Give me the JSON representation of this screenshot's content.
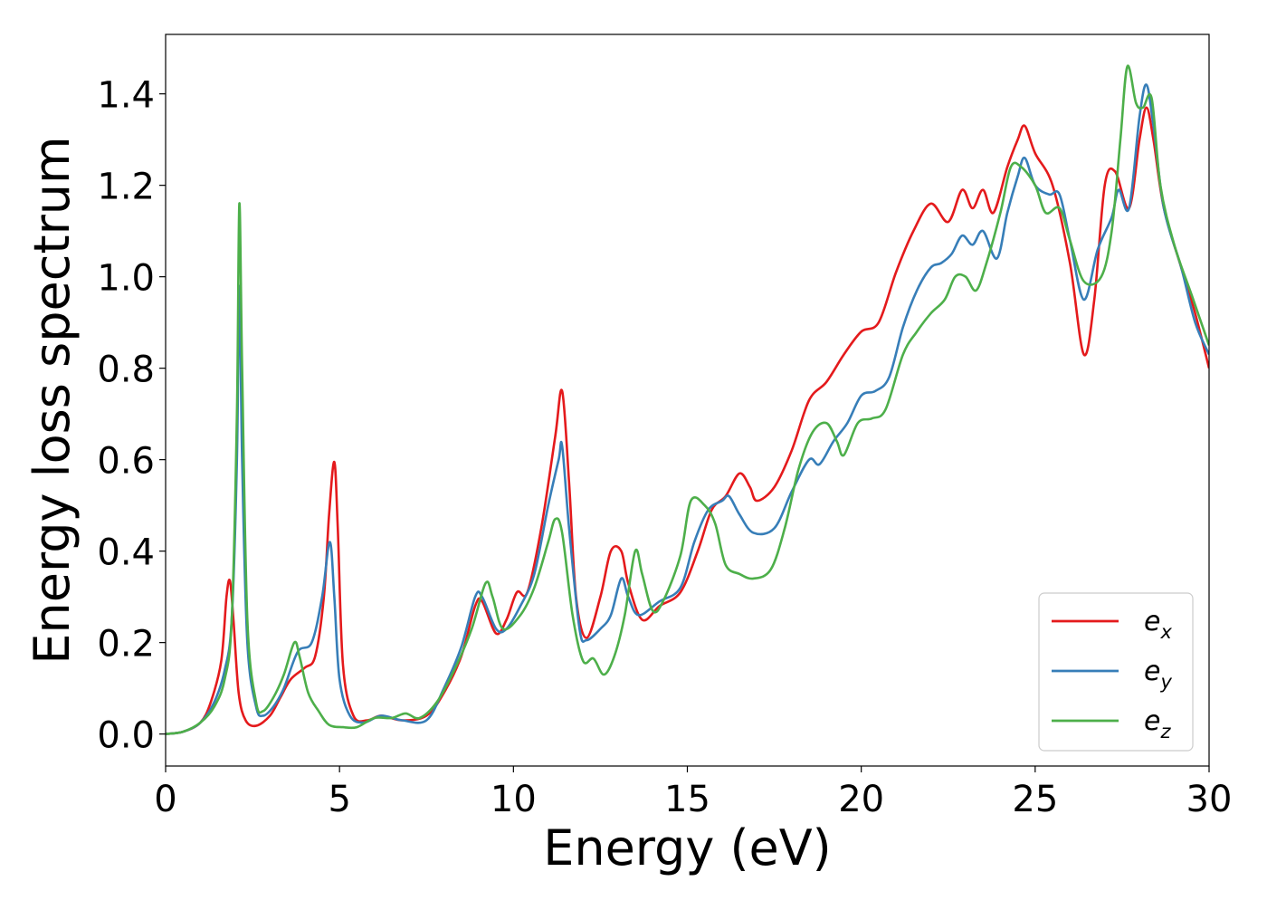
{
  "chart_data": {
    "type": "line",
    "title": "",
    "xlabel": "Energy (eV)",
    "ylabel": "Energy loss spectrum",
    "xlim": [
      0,
      30
    ],
    "ylim": [
      -0.07,
      1.53
    ],
    "xticks": [
      0,
      5,
      10,
      15,
      20,
      25,
      30
    ],
    "xtick_labels": [
      "0",
      "5",
      "10",
      "15",
      "20",
      "25",
      "30"
    ],
    "yticks": [
      0.0,
      0.2,
      0.4,
      0.6,
      0.8,
      1.0,
      1.2,
      1.4
    ],
    "ytick_labels": [
      "0.0",
      "0.2",
      "0.4",
      "0.6",
      "0.8",
      "1.0",
      "1.2",
      "1.4"
    ],
    "grid": false,
    "legend_position": "lower-right",
    "series": [
      {
        "name": "e_x",
        "legend_base": "e",
        "legend_sub": "x",
        "color": "#e41a1c",
        "points": [
          [
            0,
            0
          ],
          [
            0.5,
            0.005
          ],
          [
            1.0,
            0.025
          ],
          [
            1.3,
            0.07
          ],
          [
            1.6,
            0.16
          ],
          [
            1.75,
            0.3
          ],
          [
            1.85,
            0.335
          ],
          [
            1.95,
            0.25
          ],
          [
            2.1,
            0.09
          ],
          [
            2.3,
            0.03
          ],
          [
            2.6,
            0.018
          ],
          [
            3.0,
            0.04
          ],
          [
            3.3,
            0.08
          ],
          [
            3.6,
            0.12
          ],
          [
            4.0,
            0.145
          ],
          [
            4.3,
            0.17
          ],
          [
            4.55,
            0.3
          ],
          [
            4.7,
            0.48
          ],
          [
            4.85,
            0.595
          ],
          [
            4.95,
            0.45
          ],
          [
            5.1,
            0.15
          ],
          [
            5.4,
            0.04
          ],
          [
            5.8,
            0.03
          ],
          [
            6.2,
            0.04
          ],
          [
            6.8,
            0.03
          ],
          [
            7.5,
            0.04
          ],
          [
            8.0,
            0.09
          ],
          [
            8.5,
            0.17
          ],
          [
            8.9,
            0.28
          ],
          [
            9.1,
            0.29
          ],
          [
            9.5,
            0.22
          ],
          [
            9.8,
            0.25
          ],
          [
            10.1,
            0.31
          ],
          [
            10.4,
            0.31
          ],
          [
            10.8,
            0.45
          ],
          [
            11.2,
            0.65
          ],
          [
            11.4,
            0.75
          ],
          [
            11.6,
            0.55
          ],
          [
            11.8,
            0.3
          ],
          [
            12.1,
            0.21
          ],
          [
            12.5,
            0.3
          ],
          [
            12.8,
            0.4
          ],
          [
            13.1,
            0.4
          ],
          [
            13.3,
            0.33
          ],
          [
            13.7,
            0.25
          ],
          [
            14.2,
            0.28
          ],
          [
            14.8,
            0.31
          ],
          [
            15.3,
            0.4
          ],
          [
            15.7,
            0.49
          ],
          [
            16.1,
            0.52
          ],
          [
            16.5,
            0.57
          ],
          [
            16.8,
            0.54
          ],
          [
            17.0,
            0.51
          ],
          [
            17.5,
            0.54
          ],
          [
            18.0,
            0.62
          ],
          [
            18.5,
            0.73
          ],
          [
            19.0,
            0.77
          ],
          [
            19.5,
            0.83
          ],
          [
            20.0,
            0.88
          ],
          [
            20.5,
            0.9
          ],
          [
            21.0,
            1.01
          ],
          [
            21.5,
            1.1
          ],
          [
            22.0,
            1.16
          ],
          [
            22.5,
            1.12
          ],
          [
            22.9,
            1.19
          ],
          [
            23.2,
            1.15
          ],
          [
            23.5,
            1.19
          ],
          [
            23.8,
            1.14
          ],
          [
            24.2,
            1.24
          ],
          [
            24.5,
            1.3
          ],
          [
            24.7,
            1.33
          ],
          [
            25.0,
            1.27
          ],
          [
            25.5,
            1.2
          ],
          [
            26.0,
            1.03
          ],
          [
            26.4,
            0.83
          ],
          [
            26.7,
            0.95
          ],
          [
            27.0,
            1.2
          ],
          [
            27.3,
            1.23
          ],
          [
            27.7,
            1.15
          ],
          [
            28.0,
            1.3
          ],
          [
            28.2,
            1.37
          ],
          [
            28.4,
            1.3
          ],
          [
            28.7,
            1.15
          ],
          [
            29.2,
            1.02
          ],
          [
            29.6,
            0.92
          ],
          [
            30.0,
            0.8
          ]
        ]
      },
      {
        "name": "e_y",
        "legend_base": "e",
        "legend_sub": "y",
        "color": "#377eb8",
        "points": [
          [
            0,
            0
          ],
          [
            0.5,
            0.005
          ],
          [
            1.0,
            0.025
          ],
          [
            1.4,
            0.07
          ],
          [
            1.7,
            0.14
          ],
          [
            1.9,
            0.25
          ],
          [
            2.05,
            0.6
          ],
          [
            2.12,
            0.98
          ],
          [
            2.2,
            0.6
          ],
          [
            2.35,
            0.2
          ],
          [
            2.6,
            0.06
          ],
          [
            2.8,
            0.04
          ],
          [
            3.1,
            0.06
          ],
          [
            3.4,
            0.1
          ],
          [
            3.8,
            0.18
          ],
          [
            4.2,
            0.2
          ],
          [
            4.5,
            0.3
          ],
          [
            4.72,
            0.42
          ],
          [
            4.85,
            0.3
          ],
          [
            5.0,
            0.12
          ],
          [
            5.3,
            0.04
          ],
          [
            5.7,
            0.025
          ],
          [
            6.2,
            0.04
          ],
          [
            6.8,
            0.03
          ],
          [
            7.5,
            0.03
          ],
          [
            8.0,
            0.1
          ],
          [
            8.5,
            0.19
          ],
          [
            8.9,
            0.3
          ],
          [
            9.1,
            0.3
          ],
          [
            9.5,
            0.23
          ],
          [
            9.8,
            0.23
          ],
          [
            10.2,
            0.28
          ],
          [
            10.6,
            0.35
          ],
          [
            11.0,
            0.5
          ],
          [
            11.3,
            0.6
          ],
          [
            11.4,
            0.63
          ],
          [
            11.6,
            0.45
          ],
          [
            11.9,
            0.23
          ],
          [
            12.1,
            0.205
          ],
          [
            12.5,
            0.23
          ],
          [
            12.8,
            0.26
          ],
          [
            13.1,
            0.34
          ],
          [
            13.3,
            0.3
          ],
          [
            13.6,
            0.26
          ],
          [
            14.2,
            0.29
          ],
          [
            14.8,
            0.32
          ],
          [
            15.2,
            0.42
          ],
          [
            15.6,
            0.49
          ],
          [
            16.0,
            0.51
          ],
          [
            16.2,
            0.52
          ],
          [
            16.5,
            0.48
          ],
          [
            16.9,
            0.44
          ],
          [
            17.5,
            0.45
          ],
          [
            18.0,
            0.53
          ],
          [
            18.5,
            0.6
          ],
          [
            18.8,
            0.59
          ],
          [
            19.2,
            0.64
          ],
          [
            19.6,
            0.68
          ],
          [
            20.0,
            0.74
          ],
          [
            20.4,
            0.75
          ],
          [
            20.8,
            0.78
          ],
          [
            21.2,
            0.89
          ],
          [
            21.6,
            0.97
          ],
          [
            22.0,
            1.02
          ],
          [
            22.3,
            1.03
          ],
          [
            22.6,
            1.05
          ],
          [
            22.9,
            1.09
          ],
          [
            23.2,
            1.07
          ],
          [
            23.5,
            1.1
          ],
          [
            23.9,
            1.04
          ],
          [
            24.2,
            1.14
          ],
          [
            24.5,
            1.22
          ],
          [
            24.7,
            1.26
          ],
          [
            25.0,
            1.2
          ],
          [
            25.4,
            1.18
          ],
          [
            25.7,
            1.18
          ],
          [
            26.0,
            1.08
          ],
          [
            26.4,
            0.95
          ],
          [
            26.8,
            1.06
          ],
          [
            27.2,
            1.13
          ],
          [
            27.4,
            1.19
          ],
          [
            27.7,
            1.15
          ],
          [
            28.0,
            1.35
          ],
          [
            28.2,
            1.42
          ],
          [
            28.4,
            1.33
          ],
          [
            28.7,
            1.15
          ],
          [
            29.2,
            1.02
          ],
          [
            29.6,
            0.9
          ],
          [
            30.0,
            0.83
          ]
        ]
      },
      {
        "name": "e_z",
        "legend_base": "e",
        "legend_sub": "z",
        "color": "#4daf4a",
        "points": [
          [
            0,
            0
          ],
          [
            0.5,
            0.005
          ],
          [
            1.0,
            0.025
          ],
          [
            1.4,
            0.06
          ],
          [
            1.7,
            0.12
          ],
          [
            1.9,
            0.25
          ],
          [
            2.05,
            0.7
          ],
          [
            2.12,
            1.16
          ],
          [
            2.2,
            0.8
          ],
          [
            2.35,
            0.25
          ],
          [
            2.6,
            0.07
          ],
          [
            2.8,
            0.05
          ],
          [
            3.1,
            0.08
          ],
          [
            3.4,
            0.13
          ],
          [
            3.7,
            0.2
          ],
          [
            3.85,
            0.17
          ],
          [
            4.1,
            0.09
          ],
          [
            4.4,
            0.05
          ],
          [
            4.7,
            0.02
          ],
          [
            5.1,
            0.015
          ],
          [
            5.5,
            0.015
          ],
          [
            6.0,
            0.035
          ],
          [
            6.5,
            0.035
          ],
          [
            6.9,
            0.045
          ],
          [
            7.3,
            0.035
          ],
          [
            7.8,
            0.07
          ],
          [
            8.3,
            0.14
          ],
          [
            8.8,
            0.23
          ],
          [
            9.2,
            0.33
          ],
          [
            9.4,
            0.3
          ],
          [
            9.7,
            0.23
          ],
          [
            10.2,
            0.26
          ],
          [
            10.6,
            0.32
          ],
          [
            11.0,
            0.42
          ],
          [
            11.2,
            0.47
          ],
          [
            11.4,
            0.44
          ],
          [
            11.7,
            0.26
          ],
          [
            12.0,
            0.16
          ],
          [
            12.3,
            0.165
          ],
          [
            12.6,
            0.13
          ],
          [
            12.9,
            0.17
          ],
          [
            13.2,
            0.26
          ],
          [
            13.5,
            0.4
          ],
          [
            13.7,
            0.35
          ],
          [
            14.0,
            0.27
          ],
          [
            14.3,
            0.29
          ],
          [
            14.8,
            0.39
          ],
          [
            15.1,
            0.51
          ],
          [
            15.5,
            0.5
          ],
          [
            15.8,
            0.46
          ],
          [
            16.1,
            0.37
          ],
          [
            16.5,
            0.35
          ],
          [
            16.9,
            0.34
          ],
          [
            17.4,
            0.36
          ],
          [
            17.8,
            0.45
          ],
          [
            18.2,
            0.58
          ],
          [
            18.6,
            0.66
          ],
          [
            19.0,
            0.68
          ],
          [
            19.3,
            0.64
          ],
          [
            19.5,
            0.61
          ],
          [
            19.9,
            0.68
          ],
          [
            20.3,
            0.69
          ],
          [
            20.7,
            0.71
          ],
          [
            21.2,
            0.83
          ],
          [
            21.6,
            0.88
          ],
          [
            22.0,
            0.92
          ],
          [
            22.4,
            0.95
          ],
          [
            22.7,
            1.0
          ],
          [
            23.0,
            1.0
          ],
          [
            23.3,
            0.97
          ],
          [
            23.6,
            1.03
          ],
          [
            24.0,
            1.14
          ],
          [
            24.3,
            1.24
          ],
          [
            24.6,
            1.24
          ],
          [
            25.0,
            1.2
          ],
          [
            25.3,
            1.14
          ],
          [
            25.7,
            1.15
          ],
          [
            26.0,
            1.08
          ],
          [
            26.4,
            0.99
          ],
          [
            26.9,
            1.0
          ],
          [
            27.2,
            1.1
          ],
          [
            27.45,
            1.3
          ],
          [
            27.65,
            1.46
          ],
          [
            27.9,
            1.38
          ],
          [
            28.1,
            1.37
          ],
          [
            28.35,
            1.39
          ],
          [
            28.6,
            1.2
          ],
          [
            29.0,
            1.07
          ],
          [
            29.5,
            0.96
          ],
          [
            30.0,
            0.85
          ]
        ]
      }
    ]
  }
}
